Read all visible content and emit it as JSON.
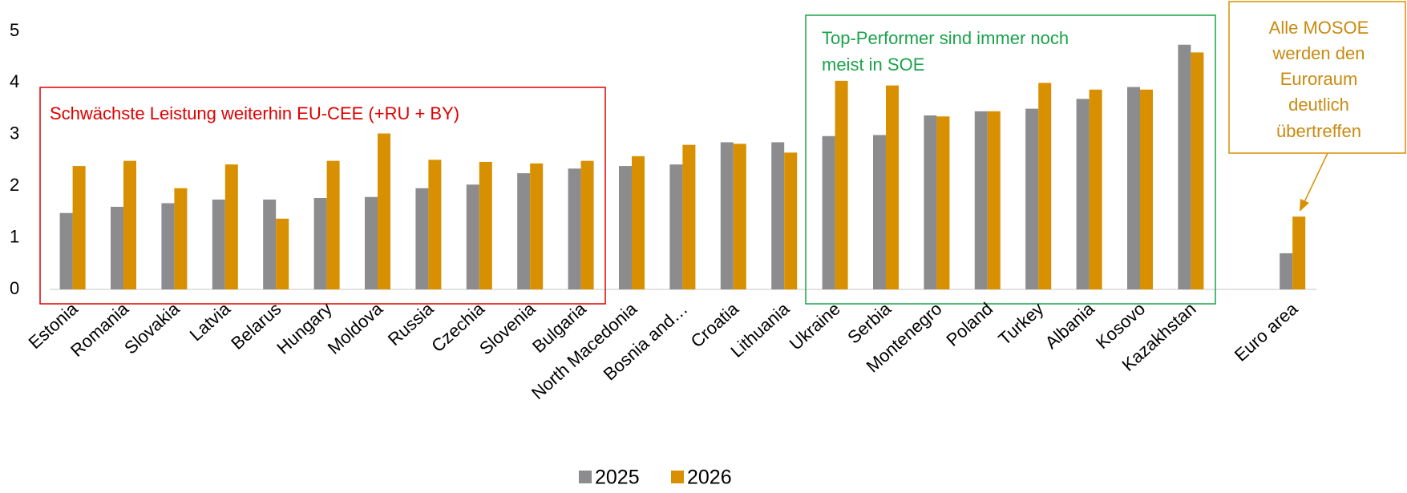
{
  "chart_data": {
    "type": "bar",
    "categories": [
      "Estonia",
      "Romania",
      "Slovakia",
      "Latvia",
      "Belarus",
      "Hungary",
      "Moldova",
      "Russia",
      "Czechia",
      "Slovenia",
      "Bulgaria",
      "North Macedonia",
      "Bosnia and…",
      "Croatia",
      "Lithuania",
      "Ukraine",
      "Serbia",
      "Montenegro",
      "Poland",
      "Turkey",
      "Albania",
      "Kosovo",
      "Kazakhstan",
      null,
      "Euro area"
    ],
    "series": [
      {
        "name": "2025",
        "color": "#8c8c8e",
        "values": [
          1.48,
          1.6,
          1.67,
          1.74,
          1.74,
          1.77,
          1.79,
          1.96,
          2.03,
          2.25,
          2.34,
          2.39,
          2.42,
          2.85,
          2.85,
          2.97,
          2.99,
          3.37,
          3.45,
          3.5,
          3.69,
          3.92,
          4.74,
          null,
          0.7
        ]
      },
      {
        "name": "2026",
        "color": "#d89000",
        "values": [
          2.39,
          2.49,
          1.96,
          2.42,
          1.37,
          2.49,
          3.02,
          2.51,
          2.47,
          2.44,
          2.49,
          2.58,
          2.8,
          2.82,
          2.65,
          4.04,
          3.95,
          3.35,
          3.45,
          4.0,
          3.87,
          3.87,
          4.59,
          null,
          1.41
        ]
      }
    ],
    "ylim": [
      0,
      5
    ],
    "yticks": [
      0,
      1,
      2,
      3,
      4,
      5
    ],
    "grid": false,
    "annotation_red": "Schwächste Leistung weiterhin EU-CEE (+RU + BY)",
    "annotation_green": [
      "Top-Performer sind immer noch",
      "meist in SOE"
    ],
    "annotation_orange": [
      "Alle MOSOE",
      "werden den",
      "Euroraum",
      "deutlich",
      "übertreffen"
    ]
  }
}
